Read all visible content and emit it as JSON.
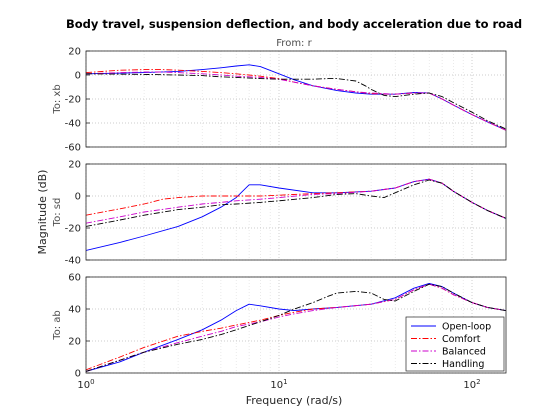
{
  "chart_data": {
    "type": "line",
    "title": "Body travel, suspension deflection, and body acceleration due to road",
    "input_label": "From: r",
    "xlabel": "Frequency  (rad/s)",
    "ylabel": "Magnitude (dB)",
    "xscale": "log",
    "xlim": [
      1,
      150
    ],
    "xticks": [
      1,
      10,
      100
    ],
    "grid": true,
    "legend": {
      "placement": "bottom-right of bottom panel",
      "entries": [
        "Open-loop",
        "Comfort",
        "Balanced",
        "Handling"
      ]
    },
    "series_styles": [
      {
        "name": "Open-loop",
        "color": "#0000ff",
        "dash": "solid"
      },
      {
        "name": "Comfort",
        "color": "#ff0000",
        "dash": "dashdot"
      },
      {
        "name": "Balanced",
        "color": "#cc00cc",
        "dash": "dashdot"
      },
      {
        "name": "Handling",
        "color": "#000000",
        "dash": "dashdot"
      }
    ],
    "panels": [
      {
        "output_label": "To: xb",
        "ylim": [
          -60,
          20
        ],
        "yticks": [
          -60,
          -40,
          -20,
          0,
          20
        ],
        "series": [
          {
            "name": "Open-loop",
            "x": [
              1,
              2,
              3,
              4,
              5,
              6,
              7,
              8,
              10,
              12,
              15,
              20,
              25,
              30,
              40,
              50,
              60,
              70,
              80,
              100,
              120,
              150
            ],
            "y": [
              1,
              2,
              3,
              4.5,
              6,
              7.5,
              8.5,
              7,
              1,
              -4,
              -9,
              -13,
              -15,
              -16,
              -16,
              -14.5,
              -15,
              -20,
              -25,
              -33,
              -39,
              -46
            ]
          },
          {
            "name": "Comfort",
            "x": [
              1,
              1.5,
              2,
              2.5,
              3,
              4,
              5,
              6,
              7,
              8,
              10,
              12,
              15,
              20,
              25,
              30,
              40,
              50,
              60,
              70,
              80,
              100,
              120,
              150
            ],
            "y": [
              2,
              4,
              4.5,
              4.5,
              4,
              3,
              2,
              1,
              0,
              -1,
              -3,
              -6,
              -9,
              -12,
              -14,
              -15.5,
              -16,
              -15,
              -15,
              -20,
              -25,
              -33,
              -39,
              -46
            ]
          },
          {
            "name": "Balanced",
            "x": [
              1,
              1.5,
              2,
              2.5,
              3,
              4,
              5,
              6,
              8,
              10,
              12,
              15,
              20,
              25,
              30,
              40,
              50,
              60,
              70,
              80,
              100,
              120,
              150
            ],
            "y": [
              1,
              2,
              2.5,
              2.5,
              2,
              1,
              0,
              -1,
              -2,
              -3.5,
              -6,
              -9,
              -12,
              -14,
              -15,
              -16,
              -15,
              -15,
              -20,
              -25,
              -33,
              -39,
              -46
            ]
          },
          {
            "name": "Handling",
            "x": [
              1,
              2,
              3,
              4,
              5,
              6,
              8,
              10,
              12,
              15,
              18,
              20,
              25,
              28,
              30,
              35,
              40,
              50,
              60,
              70,
              80,
              100,
              120,
              150
            ],
            "y": [
              1,
              0.5,
              0,
              -0.5,
              -1.5,
              -2,
              -3,
              -3.5,
              -3.5,
              -3.5,
              -3,
              -3,
              -5,
              -9,
              -12,
              -17,
              -18,
              -16,
              -15,
              -18,
              -23,
              -31,
              -38,
              -45
            ]
          }
        ]
      },
      {
        "output_label": "To: sd",
        "ylim": [
          -40,
          20
        ],
        "yticks": [
          -40,
          -20,
          0,
          20
        ],
        "series": [
          {
            "name": "Open-loop",
            "x": [
              1,
              1.5,
              2,
              3,
              4,
              5,
              6,
              7,
              8,
              10,
              15,
              20,
              30,
              40,
              50,
              60,
              70,
              80,
              100,
              120,
              150
            ],
            "y": [
              -34,
              -29,
              -25,
              -19,
              -13,
              -7,
              -1,
              7,
              7,
              5,
              2,
              2,
              3,
              5,
              9,
              10.5,
              8,
              3,
              -4,
              -9,
              -14
            ]
          },
          {
            "name": "Comfort",
            "x": [
              1,
              1.5,
              2,
              2.5,
              3,
              4,
              5,
              6,
              8,
              10,
              15,
              20,
              30,
              40,
              50,
              60,
              70,
              80,
              100,
              120,
              150
            ],
            "y": [
              -12,
              -8,
              -5,
              -2,
              -1,
              0,
              0,
              0,
              0,
              0.5,
              1.5,
              2,
              3,
              5,
              9,
              10.5,
              8,
              3,
              -4,
              -9,
              -14
            ]
          },
          {
            "name": "Balanced",
            "x": [
              1,
              1.5,
              2,
              3,
              4,
              5,
              6,
              8,
              10,
              15,
              20,
              30,
              40,
              50,
              60,
              70,
              80,
              100,
              120,
              150
            ],
            "y": [
              -17,
              -13,
              -10,
              -7,
              -5,
              -4,
              -3,
              -2,
              -1,
              1,
              1.5,
              3,
              5,
              9,
              10.5,
              8,
              3,
              -4,
              -9,
              -14
            ]
          },
          {
            "name": "Handling",
            "x": [
              1,
              1.5,
              2,
              3,
              4,
              5,
              6,
              8,
              10,
              15,
              20,
              25,
              30,
              35,
              40,
              50,
              60,
              70,
              80,
              100,
              120,
              150
            ],
            "y": [
              -19,
              -15,
              -12,
              -8.5,
              -7,
              -5.5,
              -5,
              -4,
              -3,
              -1,
              1,
              1.5,
              0,
              -1,
              2,
              7,
              10,
              8,
              3,
              -4,
              -9,
              -14
            ]
          }
        ]
      },
      {
        "output_label": "To: ab",
        "ylim": [
          0,
          60
        ],
        "yticks": [
          0,
          20,
          40,
          60
        ],
        "series": [
          {
            "name": "Open-loop",
            "x": [
              1,
              1.5,
              2,
              3,
              4,
              5,
              6,
              7,
              8,
              10,
              12,
              15,
              20,
              30,
              40,
              50,
              60,
              70,
              80,
              100,
              120,
              150
            ],
            "y": [
              1,
              7,
              13,
              21,
              27,
              33,
              39,
              43,
              42,
              40,
              39,
              40,
              41,
              43,
              47,
              53,
              56,
              54,
              50,
              44,
              41,
              39
            ]
          },
          {
            "name": "Comfort",
            "x": [
              1,
              1.5,
              2,
              3,
              4,
              5,
              6,
              8,
              10,
              12,
              15,
              20,
              30,
              40,
              50,
              60,
              70,
              80,
              100,
              120,
              150
            ],
            "y": [
              2,
              10,
              16,
              23,
              26,
              28,
              30,
              33,
              36,
              38,
              40,
              41,
              43,
              46,
              52,
              55.5,
              53,
              49,
              44,
              41,
              39
            ]
          },
          {
            "name": "Balanced",
            "x": [
              1,
              1.5,
              2,
              3,
              4,
              5,
              6,
              8,
              10,
              12,
              15,
              20,
              30,
              40,
              50,
              60,
              70,
              80,
              100,
              120,
              150
            ],
            "y": [
              1,
              8,
              13,
              19,
              23,
              26,
              29,
              32,
              35,
              37,
              39,
              41,
              43,
              46,
              52,
              55.5,
              53,
              49,
              44,
              41,
              39
            ]
          },
          {
            "name": "Handling",
            "x": [
              1,
              1.5,
              2,
              3,
              4,
              5,
              6,
              8,
              10,
              12,
              15,
              18,
              20,
              25,
              30,
              35,
              40,
              50,
              60,
              70,
              80,
              100,
              120,
              150
            ],
            "y": [
              1,
              8,
              13,
              18,
              21,
              24,
              27,
              32,
              36,
              40,
              44,
              48,
              50,
              51,
              50,
              46,
              45,
              51,
              55.5,
              54,
              50,
              44,
              41,
              39
            ]
          }
        ]
      }
    ]
  }
}
